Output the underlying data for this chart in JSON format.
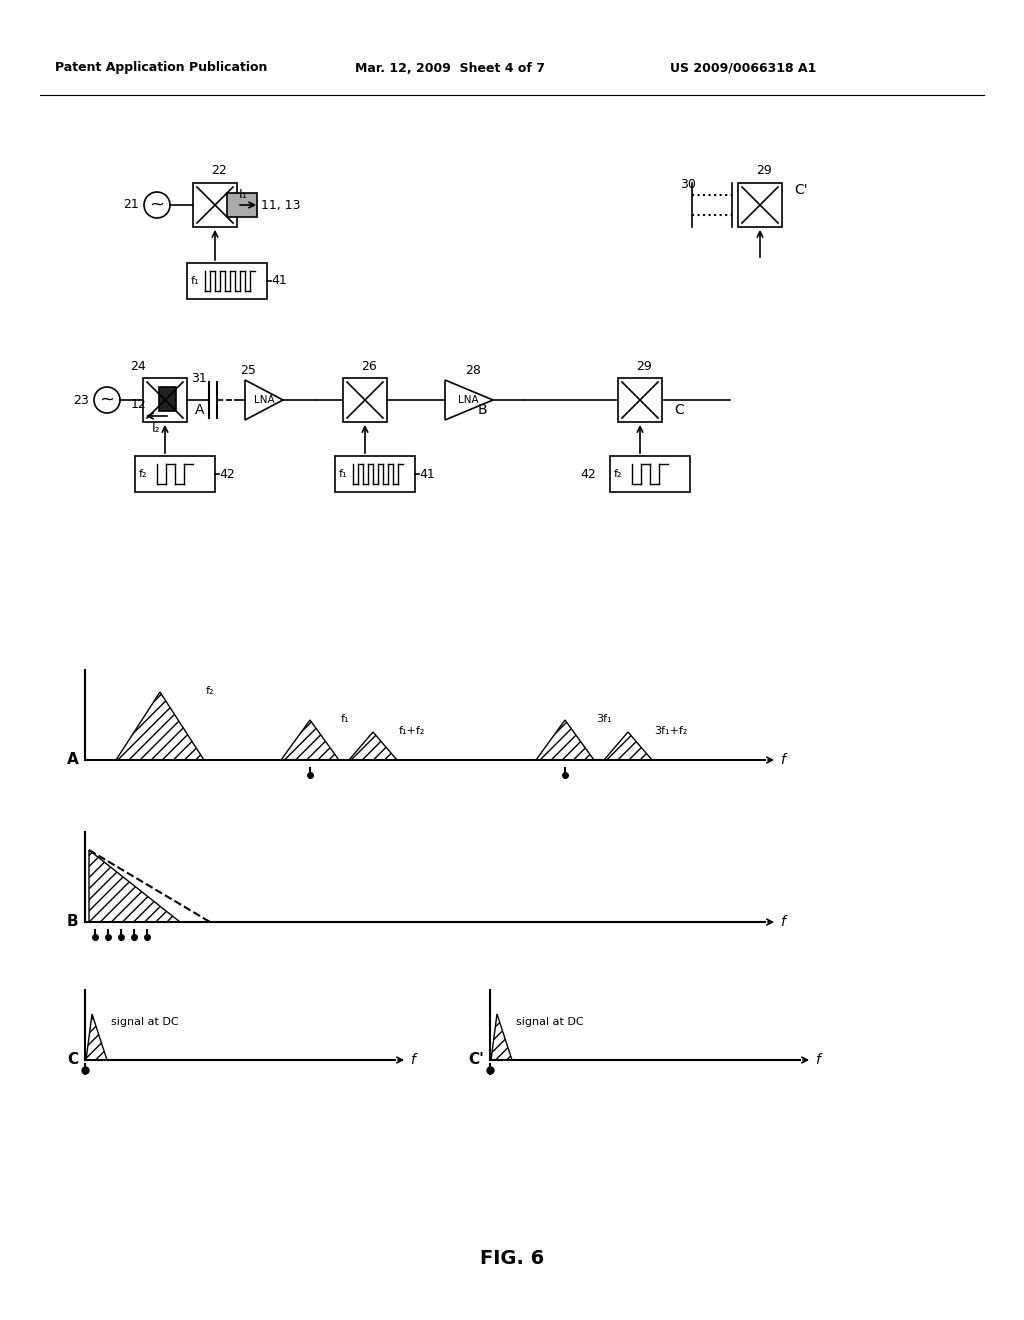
{
  "header_left": "Patent Application Publication",
  "header_mid": "Mar. 12, 2009  Sheet 4 of 7",
  "header_right": "US 2009/0066318 A1",
  "fig_label": "FIG. 6",
  "bg_color": "#ffffff",
  "line_color": "#000000",
  "gray_color": "#888888",
  "light_gray": "#cccccc"
}
